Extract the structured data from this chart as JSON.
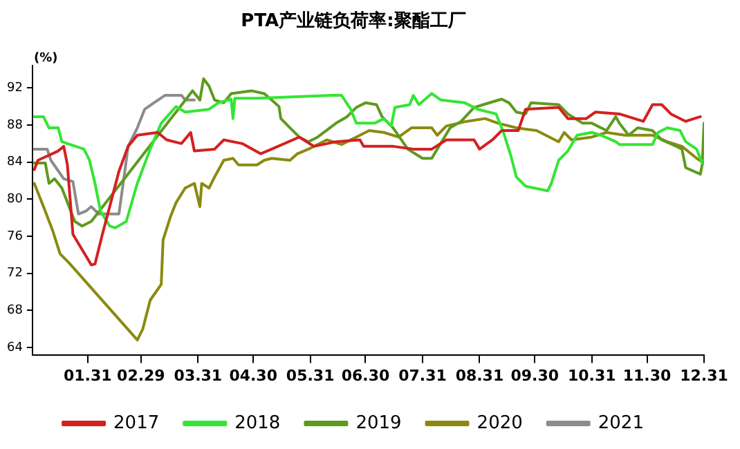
{
  "chart_data": {
    "type": "line",
    "title": "PTA产业链负荷率:聚酯工厂",
    "ylabel": "(%)",
    "xlim": [
      "--01-01",
      "--12-31"
    ],
    "xticks": [
      {
        "value": "--01-31",
        "label": "01.31"
      },
      {
        "value": "--02-29",
        "label": "02.29"
      },
      {
        "value": "--03-31",
        "label": "03.31"
      },
      {
        "value": "--04-30",
        "label": "04.30"
      },
      {
        "value": "--05-31",
        "label": "05.31"
      },
      {
        "value": "--06-30",
        "label": "06.30"
      },
      {
        "value": "--07-31",
        "label": "07.31"
      },
      {
        "value": "--08-31",
        "label": "08.31"
      },
      {
        "value": "--09-30",
        "label": "09.30"
      },
      {
        "value": "--10-31",
        "label": "10.31"
      },
      {
        "value": "--11-30",
        "label": "11.30"
      },
      {
        "value": "--12-31",
        "label": "12.31"
      }
    ],
    "ylim": [
      63.2,
      94.4
    ],
    "yticks": [
      64,
      68,
      72,
      76,
      80,
      84,
      88,
      92
    ],
    "grid": false,
    "legend": "bottom",
    "marker": "none",
    "line_style": "solid",
    "series": [
      {
        "name": "2017",
        "color": "#d42020",
        "x": [
          "--01-02",
          "--01-04",
          "--01-15",
          "--01-18",
          "--01-20",
          "--01-23",
          "--02-02",
          "--02-04",
          "--02-08",
          "--02-12",
          "--02-17",
          "--02-22",
          "--02-27",
          "--03-09",
          "--03-14",
          "--03-22",
          "--03-27",
          "--03-29",
          "--04-09",
          "--04-14",
          "--04-24",
          "--05-04",
          "--05-10",
          "--05-25",
          "--06-02",
          "--06-14",
          "--06-27",
          "--06-29",
          "--07-15",
          "--07-26",
          "--08-05",
          "--08-13",
          "--08-28",
          "--08-31",
          "--09-07",
          "--09-12",
          "--09-21",
          "--09-25",
          "--10-13",
          "--10-18",
          "--10-28",
          "--11-02",
          "--11-15",
          "--11-28",
          "--12-03",
          "--12-08",
          "--12-13",
          "--12-21",
          "--12-29"
        ],
        "values": [
          83.2,
          84.2,
          85.2,
          85.7,
          83.7,
          76.2,
          72.9,
          73,
          76.2,
          79.2,
          83,
          85.7,
          86.9,
          87.2,
          86.4,
          86,
          87.2,
          85.2,
          85.4,
          86.4,
          86,
          84.9,
          85.4,
          86.7,
          85.7,
          86.2,
          86.4,
          85.7,
          85.7,
          85.4,
          85.4,
          86.4,
          86.4,
          85.4,
          86.4,
          87.4,
          87.4,
          89.7,
          89.9,
          88.7,
          88.7,
          89.4,
          89.2,
          88.4,
          90.2,
          90.2,
          89.2,
          88.4,
          88.9
        ]
      },
      {
        "name": "2018",
        "color": "#33e633",
        "x": [
          "--01-02",
          "--01-07",
          "--01-10",
          "--01-15",
          "--01-17",
          "--01-29",
          "--02-01",
          "--02-04",
          "--02-07",
          "--02-12",
          "--02-15",
          "--02-21",
          "--02-27",
          "--03-05",
          "--03-11",
          "--03-19",
          "--03-24",
          "--04-06",
          "--04-11",
          "--04-18",
          "--04-19",
          "--04-20",
          "--05-02",
          "--06-12",
          "--06-17",
          "--06-22",
          "--06-25",
          "--07-05",
          "--07-10",
          "--07-14",
          "--07-16",
          "--07-24",
          "--07-26",
          "--07-29",
          "--08-05",
          "--08-10",
          "--08-23",
          "--08-30",
          "--09-09",
          "--09-13",
          "--09-17",
          "--09-20",
          "--09-25",
          "--10-07",
          "--10-09",
          "--10-13",
          "--10-18",
          "--10-23",
          "--10-31",
          "--11-05",
          "--11-13",
          "--11-15",
          "--12-03",
          "--12-06",
          "--12-11",
          "--12-18",
          "--12-21",
          "--12-27",
          "--12-30"
        ],
        "values": [
          88.9,
          88.9,
          87.7,
          87.7,
          86.2,
          85.4,
          84.2,
          81.7,
          78.7,
          77.1,
          76.9,
          77.6,
          81.7,
          85.4,
          88.2,
          90,
          89.4,
          89.7,
          90.4,
          90.8,
          88.7,
          90.9,
          90.9,
          91.2,
          91.2,
          89.7,
          88.2,
          88.2,
          88.7,
          87.9,
          89.9,
          90.2,
          91.2,
          90.2,
          91.4,
          90.7,
          90.4,
          89.7,
          89.2,
          87.2,
          84.7,
          82.4,
          81.4,
          80.9,
          81.7,
          84.2,
          85.2,
          86.9,
          87.2,
          86.9,
          86.2,
          85.9,
          85.9,
          87.2,
          87.7,
          87.4,
          86.2,
          85.4,
          83.9
        ]
      },
      {
        "name": "2019",
        "color": "#5e9a1e",
        "x": [
          "--01-02",
          "--01-08",
          "--01-10",
          "--01-13",
          "--01-17",
          "--01-24",
          "--01-28",
          "--02-02",
          "--03-28",
          "--03-30",
          "--04-01",
          "--04-03",
          "--04-06",
          "--04-09",
          "--04-14",
          "--04-18",
          "--04-29",
          "--05-06",
          "--05-10",
          "--05-14",
          "--05-15",
          "--05-20",
          "--05-25",
          "--05-30",
          "--06-04",
          "--06-14",
          "--06-20",
          "--06-25",
          "--06-30",
          "--07-06",
          "--07-09",
          "--07-15",
          "--07-23",
          "--07-31",
          "--08-05",
          "--08-08",
          "--08-15",
          "--08-21",
          "--08-28",
          "--09-02",
          "--09-12",
          "--09-16",
          "--09-20",
          "--09-25",
          "--09-28",
          "--10-13",
          "--10-18",
          "--10-26",
          "--10-31",
          "--11-08",
          "--11-13",
          "--11-15",
          "--11-20",
          "--11-25",
          "--12-03",
          "--12-08",
          "--12-16",
          "--12-19",
          "--12-21",
          "--12-29",
          "--12-30",
          "--12-31"
        ],
        "values": [
          83.9,
          83.9,
          81.7,
          82.2,
          81.2,
          77.6,
          77.1,
          77.6,
          91.7,
          91.2,
          90.7,
          93,
          92.2,
          90.7,
          90.4,
          91.4,
          91.7,
          91.4,
          90.7,
          90,
          88.7,
          87.7,
          86.7,
          86.2,
          86.7,
          88.2,
          88.9,
          89.9,
          90.4,
          90.2,
          88.9,
          87.7,
          85.4,
          84.4,
          84.4,
          85.4,
          87.7,
          88.4,
          89.9,
          90.2,
          90.8,
          90.4,
          89.4,
          89.2,
          90.4,
          90.2,
          89.2,
          88.2,
          88.2,
          87.4,
          88.9,
          88.2,
          86.9,
          87.7,
          87.4,
          86.4,
          85.7,
          85.4,
          83.4,
          82.7,
          83.7,
          88.2
        ]
      },
      {
        "name": "2020",
        "color": "#8a8a10",
        "x": [
          "--01-02",
          "--01-07",
          "--01-12",
          "--01-16",
          "--01-21",
          "--02-27",
          "--03-01",
          "--03-05",
          "--03-11",
          "--03-12",
          "--03-16",
          "--03-19",
          "--03-24",
          "--03-29",
          "--04-01",
          "--04-02",
          "--04-06",
          "--04-09",
          "--04-14",
          "--04-19",
          "--04-22",
          "--05-02",
          "--05-06",
          "--05-10",
          "--05-20",
          "--05-24",
          "--05-30",
          "--06-09",
          "--06-17",
          "--06-25",
          "--07-02",
          "--07-10",
          "--07-18",
          "--07-25",
          "--08-05",
          "--08-08",
          "--08-13",
          "--08-24",
          "--09-03",
          "--09-10",
          "--09-20",
          "--10-01",
          "--10-13",
          "--10-16",
          "--10-20",
          "--10-31",
          "--11-08",
          "--11-18",
          "--12-03",
          "--12-11",
          "--12-19",
          "--12-27",
          "--12-31"
        ],
        "values": [
          81.7,
          79.2,
          76.6,
          74.1,
          73.1,
          64.8,
          66,
          69.1,
          70.8,
          75.6,
          78.1,
          79.6,
          81.2,
          81.7,
          79.2,
          81.7,
          81.2,
          82.4,
          84.2,
          84.4,
          83.7,
          83.7,
          84.2,
          84.4,
          84.2,
          84.9,
          85.4,
          86.4,
          85.9,
          86.7,
          87.4,
          87.2,
          86.7,
          87.7,
          87.7,
          86.9,
          87.9,
          88.4,
          88.7,
          88.2,
          87.7,
          87.4,
          86.2,
          87.2,
          86.4,
          86.7,
          87.2,
          86.9,
          86.9,
          86.2,
          85.7,
          84.4,
          83.9
        ]
      },
      {
        "name": "2021",
        "color": "#8c8c8c",
        "x": [
          "--01-02",
          "--01-09",
          "--01-11",
          "--01-18",
          "--01-23",
          "--01-26",
          "--01-30",
          "--02-02",
          "--02-06",
          "--02-17",
          "--02-20",
          "--02-22",
          "--02-27",
          "--03-02",
          "--03-07",
          "--03-13",
          "--03-22",
          "--03-24",
          "--03-29"
        ],
        "values": [
          85.4,
          85.4,
          84.2,
          82.2,
          81.9,
          78.4,
          78.7,
          79.2,
          78.4,
          78.4,
          82.7,
          85.7,
          87.7,
          89.7,
          90.4,
          91.2,
          91.2,
          90.7,
          90.7
        ]
      }
    ]
  }
}
